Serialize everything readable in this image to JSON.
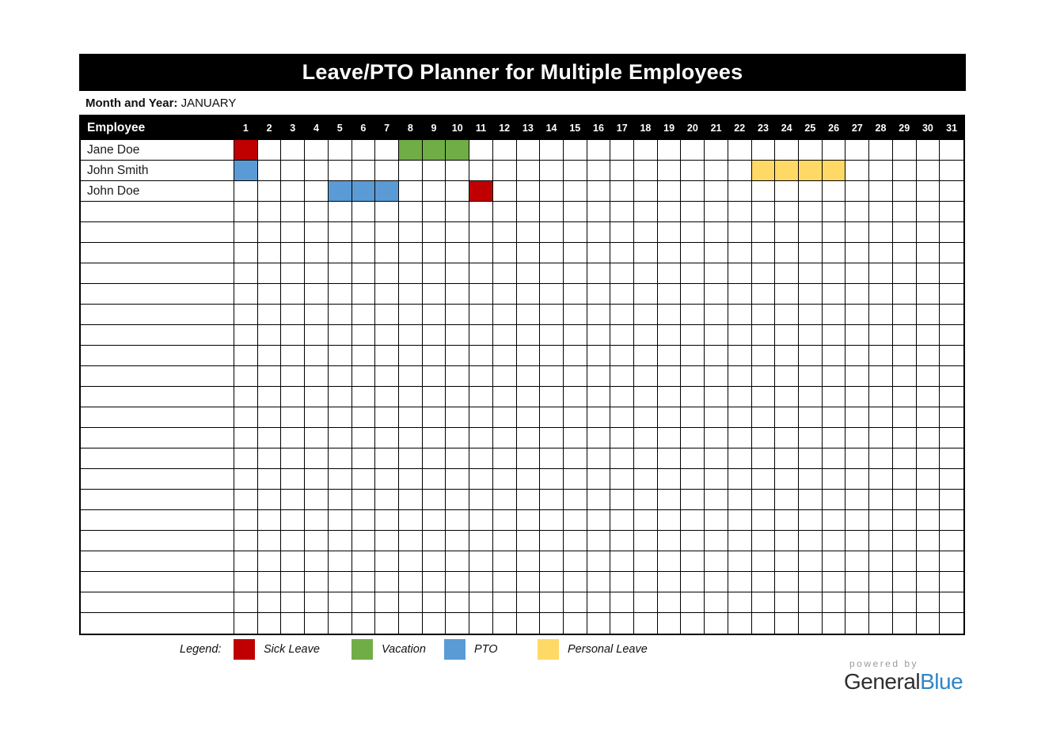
{
  "title": "Leave/PTO Planner for Multiple Employees",
  "month": {
    "label": "Month and Year:",
    "value": "JANUARY"
  },
  "table": {
    "employee_header": "Employee",
    "days": [
      "1",
      "2",
      "3",
      "4",
      "5",
      "6",
      "7",
      "8",
      "9",
      "10",
      "11",
      "12",
      "13",
      "14",
      "15",
      "16",
      "17",
      "18",
      "19",
      "20",
      "21",
      "22",
      "23",
      "24",
      "25",
      "26",
      "27",
      "28",
      "29",
      "30",
      "31"
    ],
    "rows": [
      {
        "name": "Jane Doe",
        "leaves": [
          {
            "type": "sick_leave",
            "days": [
              1
            ]
          },
          {
            "type": "vacation",
            "days": [
              8,
              9,
              10
            ]
          }
        ]
      },
      {
        "name": "John Smith",
        "leaves": [
          {
            "type": "pto",
            "days": [
              1
            ]
          },
          {
            "type": "personal_leave",
            "days": [
              23,
              24,
              25,
              26
            ]
          }
        ]
      },
      {
        "name": "John Doe",
        "leaves": [
          {
            "type": "pto",
            "days": [
              5,
              6,
              7
            ]
          },
          {
            "type": "sick_leave",
            "days": [
              11
            ]
          }
        ]
      }
    ],
    "blank_row_count": 21
  },
  "legend": {
    "label": "Legend:",
    "items": [
      {
        "key": "sick_leave",
        "label": "Sick Leave",
        "color": "#c00000"
      },
      {
        "key": "vacation",
        "label": "Vacation",
        "color": "#70ad47"
      },
      {
        "key": "pto",
        "label": "PTO",
        "color": "#5b9bd5"
      },
      {
        "key": "personal_leave",
        "label": "Personal Leave",
        "color": "#ffd966"
      }
    ]
  },
  "footer": {
    "powered_by": "powered by",
    "brand": [
      {
        "text": "General",
        "color": "#2e2e2e"
      },
      {
        "text": "Blue",
        "color": "#2e86c8"
      }
    ]
  }
}
